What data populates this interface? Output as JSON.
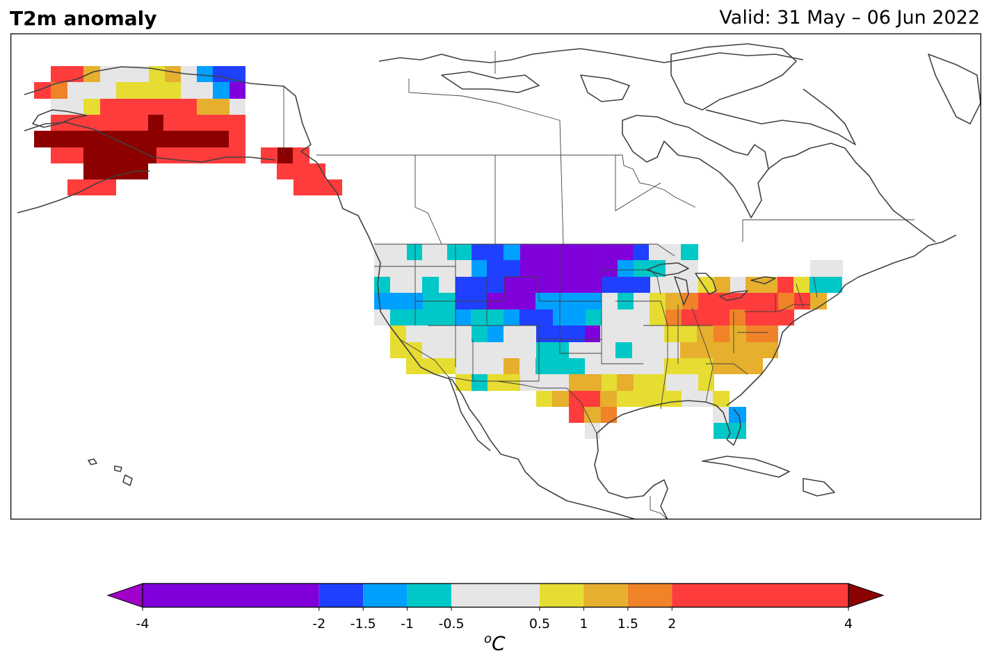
{
  "header": {
    "variable": "T2m anomaly",
    "valid": "Valid: 31 May – 06 Jun 2022"
  },
  "colorbar": {
    "unit_base": "C",
    "unit_sup": "o",
    "ticks": [
      "-4",
      "-2",
      "-1.5",
      "-1",
      "-0.5",
      "0.5",
      "1",
      "1.5",
      "2",
      "4"
    ],
    "tick_values": [
      -4,
      -2,
      -1.5,
      -1,
      -0.5,
      0.5,
      1,
      1.5,
      2,
      4
    ],
    "bins": [
      {
        "from": -4,
        "to": -2,
        "color": "#8000dc"
      },
      {
        "from": -2,
        "to": -1.5,
        "color": "#2040ff"
      },
      {
        "from": -1.5,
        "to": -1,
        "color": "#00a0ff"
      },
      {
        "from": -1,
        "to": -0.5,
        "color": "#00c8c8"
      },
      {
        "from": -0.5,
        "to": 0.5,
        "color": "#e6e6e6"
      },
      {
        "from": 0.5,
        "to": 1,
        "color": "#e6dc32"
      },
      {
        "from": 1,
        "to": 1.5,
        "color": "#e6af2d"
      },
      {
        "from": 1.5,
        "to": 2,
        "color": "#f08228"
      },
      {
        "from": 2,
        "to": 4,
        "color": "#ff3c3c"
      }
    ],
    "under_color": "#a000c8",
    "over_color": "#8c0000"
  },
  "map_colors": {
    "coastline": "#404040",
    "border": "#404040"
  }
}
